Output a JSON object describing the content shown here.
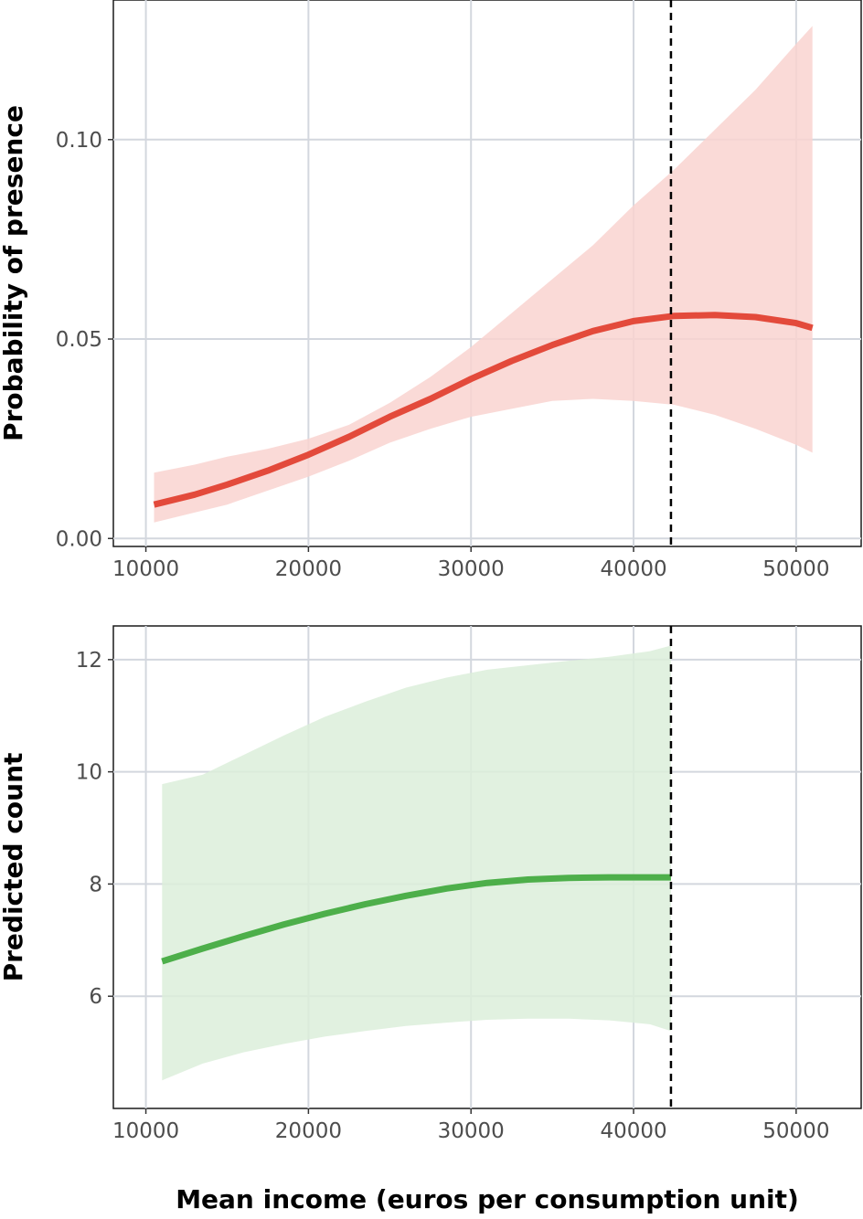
{
  "xlabel": "Mean income (euros per consumption unit)",
  "chart_data": [
    {
      "type": "line",
      "title": "",
      "xlabel": "",
      "ylabel": "Probability of presence",
      "xlim": [
        8000,
        54000
      ],
      "ylim": [
        -0.002,
        0.135
      ],
      "xticks": [
        10000,
        20000,
        30000,
        40000,
        50000
      ],
      "xtick_labels": [
        "10000",
        "20000",
        "30000",
        "40000",
        "50000"
      ],
      "yticks": [
        0.0,
        0.05,
        0.1
      ],
      "ytick_labels": [
        "0.00",
        "0.05",
        "0.10"
      ],
      "grid": true,
      "vline": 42300,
      "color": "#e34a3b",
      "band_color": "#f9d3d0",
      "series": [
        {
          "x": [
            10500,
            13000,
            15000,
            17500,
            20000,
            22500,
            25000,
            27500,
            30000,
            32500,
            35000,
            37500,
            40000,
            42500,
            45000,
            47500,
            50000,
            51000
          ],
          "y": [
            0.0085,
            0.011,
            0.0135,
            0.017,
            0.021,
            0.0255,
            0.0305,
            0.035,
            0.04,
            0.0445,
            0.0485,
            0.052,
            0.0545,
            0.0558,
            0.056,
            0.0555,
            0.054,
            0.0528
          ],
          "lower": [
            0.004,
            0.0065,
            0.0085,
            0.012,
            0.0155,
            0.0195,
            0.024,
            0.0275,
            0.0305,
            0.0325,
            0.0345,
            0.035,
            0.0345,
            0.0335,
            0.031,
            0.0275,
            0.0235,
            0.0215
          ],
          "upper": [
            0.0165,
            0.0185,
            0.0205,
            0.0225,
            0.025,
            0.0285,
            0.034,
            0.0405,
            0.048,
            0.0565,
            0.065,
            0.0735,
            0.0835,
            0.0925,
            0.1025,
            0.1125,
            0.124,
            0.1285
          ]
        }
      ]
    },
    {
      "type": "line",
      "title": "",
      "xlabel": "Mean income (euros per consumption unit)",
      "ylabel": "Predicted count",
      "xlim": [
        8000,
        54000
      ],
      "ylim": [
        4.0,
        12.6
      ],
      "xticks": [
        10000,
        20000,
        30000,
        40000,
        50000
      ],
      "xtick_labels": [
        "10000",
        "20000",
        "30000",
        "40000",
        "50000"
      ],
      "yticks": [
        6,
        8,
        10,
        12
      ],
      "ytick_labels": [
        "6",
        "8",
        "10",
        "12"
      ],
      "grid": true,
      "vline": 42300,
      "color": "#4daf4a",
      "band_color": "#dcefdb",
      "series": [
        {
          "x": [
            11000,
            13500,
            16000,
            18500,
            21000,
            23500,
            26000,
            28500,
            31000,
            33500,
            36000,
            38500,
            41000,
            42300
          ],
          "y": [
            6.62,
            6.85,
            7.07,
            7.28,
            7.47,
            7.64,
            7.79,
            7.92,
            8.02,
            8.08,
            8.11,
            8.12,
            8.12,
            8.12
          ],
          "lower": [
            4.5,
            4.8,
            5.0,
            5.15,
            5.28,
            5.38,
            5.47,
            5.53,
            5.58,
            5.6,
            5.6,
            5.57,
            5.5,
            5.38
          ],
          "upper": [
            9.78,
            9.95,
            10.3,
            10.65,
            10.98,
            11.25,
            11.5,
            11.68,
            11.82,
            11.9,
            11.98,
            12.05,
            12.15,
            12.25
          ]
        }
      ]
    }
  ]
}
